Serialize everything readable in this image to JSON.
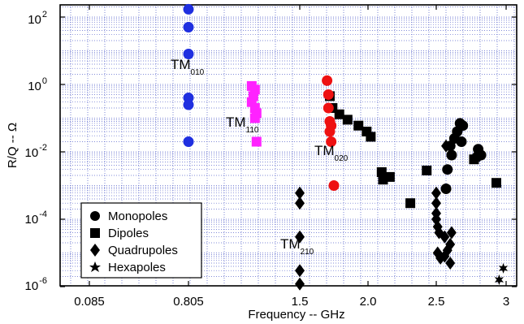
{
  "chart_data": {
    "type": "scatter",
    "title": "",
    "xlabel": "Frequency -- GHz",
    "ylabel": "R/Q -- Ω",
    "y_scale": "log",
    "ylim": [
      1e-06,
      300
    ],
    "grid": true,
    "legend_position": "bottom-left",
    "x_tick_labels": [
      "0.085",
      "0.805",
      "1.5",
      "2.0",
      "2.5",
      "3"
    ],
    "y_tick_labels": [
      {
        "base": "10",
        "exp": "2",
        "value": 100
      },
      {
        "base": "10",
        "exp": "0",
        "value": 1
      },
      {
        "base": "10",
        "exp": "-2",
        "value": 0.01
      },
      {
        "base": "10",
        "exp": "-4",
        "value": 0.0001
      },
      {
        "base": "10",
        "exp": "-6",
        "value": 1e-06
      }
    ],
    "series": [
      {
        "name": "Monopoles",
        "marker": "circle",
        "points": [
          {
            "x": 2.67,
            "y": 0.07
          },
          {
            "x": 2.69,
            "y": 0.06
          },
          {
            "x": 2.65,
            "y": 0.04
          },
          {
            "x": 2.63,
            "y": 0.025
          },
          {
            "x": 2.68,
            "y": 0.02
          },
          {
            "x": 2.6,
            "y": 0.015
          },
          {
            "x": 2.61,
            "y": 0.008
          },
          {
            "x": 2.58,
            "y": 0.003
          },
          {
            "x": 2.57,
            "y": 0.0008
          },
          {
            "x": 2.8,
            "y": 0.012
          },
          {
            "x": 2.82,
            "y": 0.008
          },
          {
            "x": 2.79,
            "y": 0.007
          }
        ]
      },
      {
        "name": "Dipoles",
        "marker": "square",
        "points": [
          {
            "x": 1.72,
            "y": 0.45
          },
          {
            "x": 1.74,
            "y": 0.2
          },
          {
            "x": 1.79,
            "y": 0.13
          },
          {
            "x": 1.85,
            "y": 0.09
          },
          {
            "x": 1.93,
            "y": 0.06
          },
          {
            "x": 1.99,
            "y": 0.04
          },
          {
            "x": 2.02,
            "y": 0.028
          },
          {
            "x": 2.1,
            "y": 0.0025
          },
          {
            "x": 2.11,
            "y": 0.0015
          },
          {
            "x": 2.16,
            "y": 0.0018
          },
          {
            "x": 2.31,
            "y": 0.0003
          },
          {
            "x": 2.43,
            "y": 0.0028
          },
          {
            "x": 2.77,
            "y": 0.006
          },
          {
            "x": 2.93,
            "y": 0.0012
          }
        ]
      },
      {
        "name": "Quadrupoles",
        "marker": "diamond",
        "points": [
          {
            "x": 1.5,
            "y": 0.0006
          },
          {
            "x": 1.5,
            "y": 0.0003
          },
          {
            "x": 1.5,
            "y": 3e-05
          },
          {
            "x": 1.5,
            "y": 3e-06
          },
          {
            "x": 1.5,
            "y": 1.2e-06
          },
          {
            "x": 2.5,
            "y": 0.0006
          },
          {
            "x": 2.5,
            "y": 0.0003
          },
          {
            "x": 2.5,
            "y": 0.00015
          },
          {
            "x": 2.5,
            "y": 0.0001
          },
          {
            "x": 2.51,
            "y": 6e-05
          },
          {
            "x": 2.52,
            "y": 4e-05
          },
          {
            "x": 2.51,
            "y": 1e-05
          },
          {
            "x": 2.53,
            "y": 7e-06
          },
          {
            "x": 2.56,
            "y": 8e-06
          },
          {
            "x": 2.56,
            "y": 3e-05
          },
          {
            "x": 2.58,
            "y": 1.2e-05
          },
          {
            "x": 2.6,
            "y": 1.8e-05
          },
          {
            "x": 2.61,
            "y": 4e-05
          },
          {
            "x": 2.6,
            "y": 5e-06
          },
          {
            "x": 2.57,
            "y": 0.015
          }
        ]
      },
      {
        "name": "Hexapoles",
        "marker": "star",
        "points": [
          {
            "x": 2.98,
            "y": 3.5e-06
          },
          {
            "x": 2.95,
            "y": 1.6e-06
          }
        ]
      },
      {
        "name": "",
        "marker": "circle",
        "color": "#1f2fe0",
        "points": [
          {
            "x": 0.805,
            "y": 170
          },
          {
            "x": 0.805,
            "y": 50
          },
          {
            "x": 0.805,
            "y": 8
          },
          {
            "x": 0.805,
            "y": 0.4
          },
          {
            "x": 0.805,
            "y": 0.25
          },
          {
            "x": 0.805,
            "y": 0.02
          }
        ]
      },
      {
        "name": "",
        "marker": "square",
        "color": "#ff22ff",
        "points": [
          {
            "x": 1.2,
            "y": 0.9
          },
          {
            "x": 1.22,
            "y": 0.7
          },
          {
            "x": 1.21,
            "y": 0.45
          },
          {
            "x": 1.2,
            "y": 0.3
          },
          {
            "x": 1.22,
            "y": 0.2
          },
          {
            "x": 1.23,
            "y": 0.14
          },
          {
            "x": 1.22,
            "y": 0.1
          },
          {
            "x": 1.23,
            "y": 0.02
          }
        ]
      },
      {
        "name": "",
        "marker": "circle",
        "color": "#ee1111",
        "points": [
          {
            "x": 1.7,
            "y": 1.3
          },
          {
            "x": 1.71,
            "y": 0.5
          },
          {
            "x": 1.71,
            "y": 0.2
          },
          {
            "x": 1.72,
            "y": 0.08
          },
          {
            "x": 1.73,
            "y": 0.06
          },
          {
            "x": 1.72,
            "y": 0.04
          },
          {
            "x": 1.73,
            "y": 0.02
          },
          {
            "x": 1.75,
            "y": 0.001
          }
        ]
      }
    ],
    "annotations": [
      {
        "main": "TM",
        "sub": "010",
        "x": 0.805,
        "y": 2.5
      },
      {
        "main": "TM",
        "sub": "110",
        "x": 1.28,
        "y": 0.04
      },
      {
        "main": "TM",
        "sub": "020",
        "x": 1.9,
        "y": 0.005
      },
      {
        "main": "TM",
        "sub": "210",
        "x": 1.5,
        "y": 1.1e-05
      }
    ]
  }
}
